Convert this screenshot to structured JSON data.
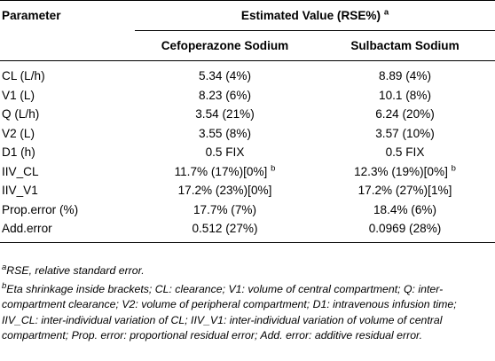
{
  "table": {
    "header": {
      "parameter": "Parameter",
      "estimated": "Estimated Value (RSE%)",
      "estimated_sup": "a",
      "col1": "Cefoperazone Sodium",
      "col2": "Sulbactam Sodium"
    },
    "rows": [
      {
        "param": "CL (L/h)",
        "v1": "5.34 (4%)",
        "v2": "8.89 (4%)"
      },
      {
        "param": "V1 (L)",
        "v1": "8.23 (6%)",
        "v2": "10.1 (8%)"
      },
      {
        "param": "Q (L/h)",
        "v1": "3.54 (21%)",
        "v2": "6.24 (20%)"
      },
      {
        "param": "V2 (L)",
        "v1": "3.55 (8%)",
        "v2": "3.57 (10%)"
      },
      {
        "param": "D1 (h)",
        "v1": "0.5 FIX",
        "v2": "0.5 FIX"
      },
      {
        "param": "IIV_CL",
        "v1": "11.7% (17%)[0%]",
        "v1_sup": "b",
        "v2": "12.3% (19%)[0%]",
        "v2_sup": "b"
      },
      {
        "param": "IIV_V1",
        "v1": "17.2% (23%)[0%]",
        "v2": "17.2% (27%)[1%]"
      },
      {
        "param": "Prop.error (%)",
        "v1": "17.7% (7%)",
        "v2": "18.4% (6%)"
      },
      {
        "param": "Add.error",
        "v1": "0.512 (27%)",
        "v2": "0.0969 (28%)"
      }
    ]
  },
  "notes": {
    "a_mark": "a",
    "a_text": "RSE, relative standard error.",
    "b_mark": "b",
    "b_text": "Eta shrinkage inside brackets; CL: clearance; V1: volume of central compartment; Q: inter-compartment clearance; V2: volume of peripheral compartment; D1: intravenous infusion time; IIV_CL: inter-individual variation of CL; IIV_V1: inter-individual variation of volume of central compartment; Prop. error: proportional residual error; Add. error: additive residual error."
  }
}
